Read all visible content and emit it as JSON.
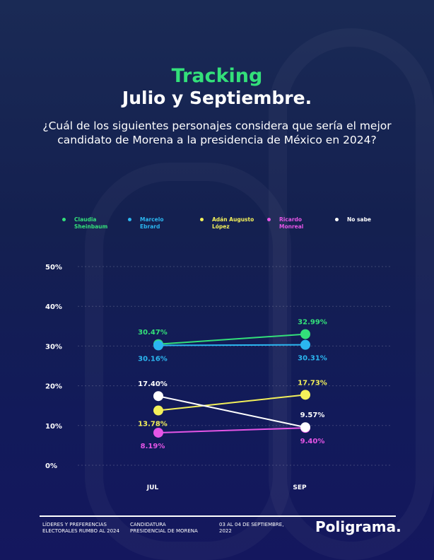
{
  "header": {
    "title_line1": "Tracking",
    "title_line2": "Julio y Septiembre.",
    "question": "¿Cuál de los siguientes personajes considera que sería el mejor candidato de Morena a la presidencia de México en 2024?"
  },
  "chart_data": {
    "type": "line",
    "categories": [
      "JUL",
      "SEP"
    ],
    "ylim": [
      0,
      50
    ],
    "yticks": [
      "0%",
      "10%",
      "20%",
      "30%",
      "40%",
      "50%"
    ],
    "grid": true,
    "legend_placement": "top",
    "series": [
      {
        "name": "Claudia Sheinbaum",
        "name_lines": [
          "Claudia",
          "Sheinbaum"
        ],
        "color": "#33e07a",
        "values": [
          30.47,
          32.99
        ],
        "labels": [
          "30.47%",
          "32.99%"
        ],
        "label_pos": [
          "above",
          "above"
        ]
      },
      {
        "name": "Marcelo Ebrard",
        "name_lines": [
          "Marcelo",
          "Ebrard"
        ],
        "color": "#2bb6f0",
        "values": [
          30.16,
          30.31
        ],
        "labels": [
          "30.16%",
          "30.31%"
        ],
        "label_pos": [
          "below",
          "below"
        ]
      },
      {
        "name": "Adán Augusto López",
        "name_lines": [
          "Adán Augusto",
          "López"
        ],
        "color": "#f3f05a",
        "values": [
          13.78,
          17.73
        ],
        "labels": [
          "13.78%",
          "17.73%"
        ],
        "label_pos": [
          "below",
          "above"
        ]
      },
      {
        "name": "Ricardo Monreal",
        "name_lines": [
          "Ricardo",
          "Monreal"
        ],
        "color": "#e455e6",
        "values": [
          8.19,
          9.4
        ],
        "labels": [
          "8.19%",
          "9.40%"
        ],
        "label_pos": [
          "below",
          "below"
        ]
      },
      {
        "name": "No sabe",
        "name_lines": [
          "No sabe",
          ""
        ],
        "color": "#ffffff",
        "values": [
          17.4,
          9.57
        ],
        "labels": [
          "17.40%",
          "9.57%"
        ],
        "label_pos": [
          "above",
          "above"
        ]
      }
    ]
  },
  "footer": {
    "col1": [
      "LÍDERES Y PREFERENCIAS",
      "ELECTORALES RUMBO AL 2024"
    ],
    "col2": [
      "CANDIDATURA",
      "PRESIDENCIAL DE MORENA"
    ],
    "col3": [
      "03 AL 04 DE SEPTIEMBRE,",
      "2022"
    ],
    "logo": "Poligrama."
  }
}
